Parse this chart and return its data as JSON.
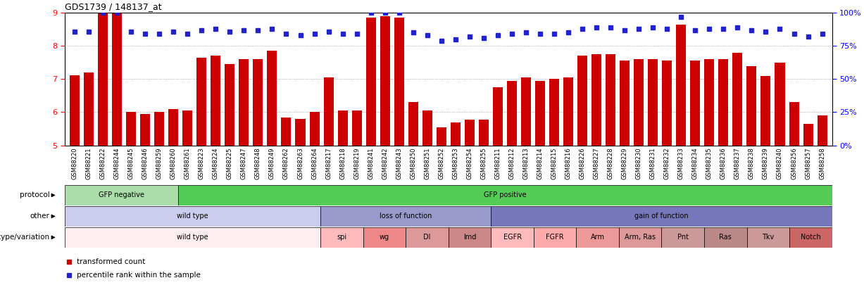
{
  "title": "GDS1739 / 148137_at",
  "samples": [
    "GSM88220",
    "GSM88221",
    "GSM88222",
    "GSM88244",
    "GSM88245",
    "GSM88246",
    "GSM88259",
    "GSM88260",
    "GSM88261",
    "GSM88223",
    "GSM88224",
    "GSM88225",
    "GSM88247",
    "GSM88248",
    "GSM88249",
    "GSM88262",
    "GSM88263",
    "GSM88264",
    "GSM88217",
    "GSM88218",
    "GSM88219",
    "GSM88241",
    "GSM88242",
    "GSM88243",
    "GSM88250",
    "GSM88251",
    "GSM88252",
    "GSM88253",
    "GSM88254",
    "GSM88255",
    "GSM88211",
    "GSM88212",
    "GSM88213",
    "GSM88214",
    "GSM88215",
    "GSM88216",
    "GSM88226",
    "GSM88227",
    "GSM88228",
    "GSM88229",
    "GSM88230",
    "GSM88231",
    "GSM88232",
    "GSM88233",
    "GSM88234",
    "GSM88235",
    "GSM88236",
    "GSM88237",
    "GSM88238",
    "GSM88239",
    "GSM88240",
    "GSM88256",
    "GSM88257",
    "GSM88258"
  ],
  "bar_values": [
    7.12,
    7.2,
    9.2,
    9.25,
    6.0,
    5.95,
    6.0,
    6.1,
    6.05,
    7.65,
    7.7,
    7.45,
    7.6,
    7.6,
    7.85,
    5.85,
    5.8,
    6.0,
    7.05,
    6.05,
    6.05,
    8.85,
    8.9,
    8.85,
    6.3,
    6.05,
    5.55,
    5.7,
    5.78,
    5.78,
    6.75,
    6.95,
    7.05,
    6.95,
    7.0,
    7.05,
    7.7,
    7.75,
    7.75,
    7.55,
    7.6,
    7.6,
    7.55,
    8.65,
    7.55,
    7.6,
    7.6,
    7.8,
    7.4,
    7.1,
    7.5,
    6.3,
    5.65,
    5.9
  ],
  "dot_values": [
    86,
    86,
    100,
    100,
    86,
    84,
    84,
    86,
    84,
    87,
    88,
    86,
    87,
    87,
    88,
    84,
    83,
    84,
    86,
    84,
    84,
    100,
    100,
    100,
    85,
    83,
    79,
    80,
    82,
    81,
    83,
    84,
    85,
    84,
    84,
    85,
    88,
    89,
    89,
    87,
    88,
    89,
    88,
    97,
    87,
    88,
    88,
    89,
    87,
    86,
    88,
    84,
    82,
    84
  ],
  "ylim_left": [
    5,
    9
  ],
  "ylim_right": [
    0,
    100
  ],
  "yticks_left": [
    5,
    6,
    7,
    8,
    9
  ],
  "yticks_right": [
    0,
    25,
    50,
    75,
    100
  ],
  "bar_color": "#cc0000",
  "dot_color": "#2222cc",
  "protocol_groups": [
    {
      "label": "GFP negative",
      "start": 0,
      "end": 8,
      "color": "#aaddaa"
    },
    {
      "label": "GFP positive",
      "start": 8,
      "end": 54,
      "color": "#55cc55"
    }
  ],
  "other_groups": [
    {
      "label": "wild type",
      "start": 0,
      "end": 18,
      "color": "#ccccee"
    },
    {
      "label": "loss of function",
      "start": 18,
      "end": 30,
      "color": "#9999cc"
    },
    {
      "label": "gain of function",
      "start": 30,
      "end": 54,
      "color": "#7777bb"
    }
  ],
  "genotype_groups": [
    {
      "label": "wild type",
      "start": 0,
      "end": 18,
      "color": "#ffeef0"
    },
    {
      "label": "spi",
      "start": 18,
      "end": 21,
      "color": "#ffbbbb"
    },
    {
      "label": "wg",
      "start": 21,
      "end": 24,
      "color": "#ee8888"
    },
    {
      "label": "Dl",
      "start": 24,
      "end": 27,
      "color": "#dd9999"
    },
    {
      "label": "lmd",
      "start": 27,
      "end": 30,
      "color": "#cc8888"
    },
    {
      "label": "EGFR",
      "start": 30,
      "end": 33,
      "color": "#ffbbbb"
    },
    {
      "label": "FGFR",
      "start": 33,
      "end": 36,
      "color": "#ffaaaa"
    },
    {
      "label": "Arm",
      "start": 36,
      "end": 39,
      "color": "#ee9999"
    },
    {
      "label": "Arm, Ras",
      "start": 39,
      "end": 42,
      "color": "#dd9999"
    },
    {
      "label": "Pnt",
      "start": 42,
      "end": 45,
      "color": "#cc9999"
    },
    {
      "label": "Ras",
      "start": 45,
      "end": 48,
      "color": "#bb8888"
    },
    {
      "label": "Tkv",
      "start": 48,
      "end": 51,
      "color": "#cc9999"
    },
    {
      "label": "Notch",
      "start": 51,
      "end": 54,
      "color": "#cc6666"
    }
  ]
}
